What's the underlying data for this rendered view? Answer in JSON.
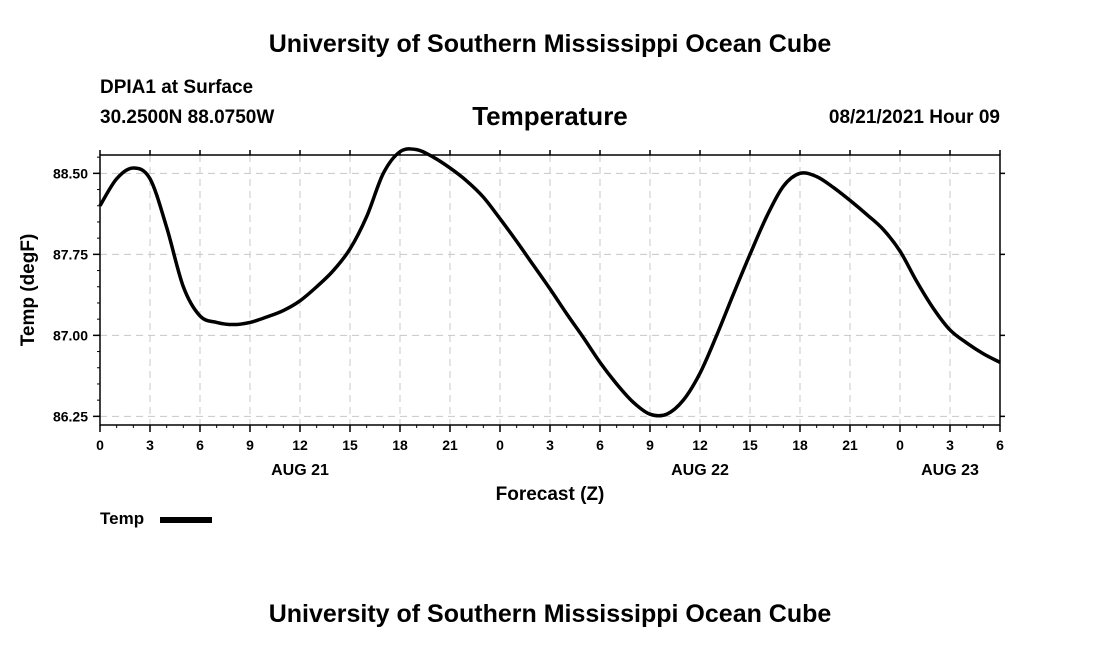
{
  "header": {
    "top_title": "University of Southern Mississippi Ocean Cube",
    "station": "DPIA1 at Surface",
    "coords": "30.2500N  88.0750W",
    "variable": "Temperature",
    "datetime": "08/21/2021 Hour 09",
    "bottom_title": "University of Southern Mississippi Ocean Cube"
  },
  "legend": {
    "label": "Temp"
  },
  "chart_data": {
    "type": "line",
    "ylabel": "Temp (degF)",
    "xlabel": "Forecast (Z)",
    "ylim": [
      86.17,
      88.67
    ],
    "xlim": [
      0,
      54
    ],
    "y_ticks": [
      "86.25",
      "87.00",
      "87.75",
      "88.50"
    ],
    "y_tick_values": [
      86.25,
      87.0,
      87.75,
      88.5
    ],
    "x_tick_labels": [
      "0",
      "3",
      "6",
      "9",
      "12",
      "15",
      "18",
      "21",
      "0",
      "3",
      "6",
      "9",
      "12",
      "15",
      "18",
      "21",
      "0",
      "3",
      "6"
    ],
    "date_labels": [
      {
        "label": "AUG 21",
        "x": 12
      },
      {
        "label": "AUG 22",
        "x": 36
      },
      {
        "label": "AUG 23",
        "x": 51
      }
    ],
    "grid": true,
    "series": [
      {
        "name": "Temp",
        "color": "#000000",
        "x": [
          0,
          1,
          2,
          3,
          4,
          5,
          6,
          7,
          8,
          9,
          10,
          11,
          12,
          13,
          14,
          15,
          16,
          17,
          18,
          19,
          20,
          21,
          22,
          23,
          24,
          25,
          26,
          27,
          28,
          29,
          30,
          31,
          32,
          33,
          34,
          35,
          36,
          37,
          38,
          39,
          40,
          41,
          42,
          43,
          44,
          45,
          46,
          47,
          48,
          49,
          50,
          51,
          52,
          53,
          54
        ],
        "values": [
          88.2,
          88.45,
          88.55,
          88.45,
          88.0,
          87.45,
          87.18,
          87.12,
          87.1,
          87.12,
          87.17,
          87.23,
          87.32,
          87.45,
          87.6,
          87.8,
          88.1,
          88.5,
          88.7,
          88.72,
          88.65,
          88.55,
          88.43,
          88.28,
          88.08,
          87.87,
          87.65,
          87.43,
          87.2,
          86.98,
          86.75,
          86.55,
          86.38,
          86.27,
          86.27,
          86.4,
          86.65,
          87.0,
          87.38,
          87.75,
          88.1,
          88.38,
          88.5,
          88.47,
          88.37,
          88.25,
          88.12,
          87.98,
          87.78,
          87.5,
          87.25,
          87.05,
          86.93,
          86.83,
          86.75
        ]
      }
    ]
  }
}
